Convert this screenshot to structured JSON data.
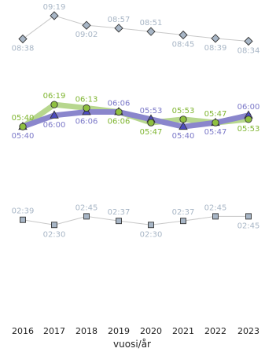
{
  "chart_data": {
    "type": "line",
    "xlabel": "vuosi/år",
    "x": [
      2016,
      2017,
      2018,
      2019,
      2020,
      2021,
      2022,
      2023
    ],
    "series": [
      {
        "values": [
          "08:38",
          "09:19",
          "09:02",
          "08:57",
          "08:51",
          "08:45",
          "08:39",
          "08:34"
        ],
        "minutes": [
          518,
          559,
          542,
          537,
          531,
          525,
          519,
          514
        ],
        "color": "#a8b6c6",
        "line_color": "#c8c8c8",
        "marker": "diamond",
        "marker_fill": "#a8b6c6",
        "label_positions": [
          "below",
          "above",
          "below",
          "above",
          "above",
          "below",
          "below",
          "below"
        ],
        "range_minutes": [
          480,
          570
        ]
      },
      {
        "values": [
          "05:40",
          "06:00",
          "06:06",
          "06:06",
          "05:53",
          "05:40",
          "05:47",
          "06:00"
        ],
        "minutes": [
          340,
          360,
          366,
          366,
          353,
          340,
          347,
          360
        ],
        "color": "#7b78c8",
        "line_color": "#8a86cc",
        "marker": "triangle",
        "marker_fill": "#4d4cbf",
        "label_positions": [
          "below",
          "below",
          "below",
          "above",
          "above",
          "below",
          "below",
          "above"
        ],
        "range_minutes": [
          300,
          400
        ]
      },
      {
        "values": [
          "05:40",
          "06:19",
          "06:13",
          "06:06",
          "05:47",
          "05:53",
          "05:47",
          "05:53"
        ],
        "minutes": [
          340,
          379,
          373,
          366,
          347,
          353,
          347,
          353
        ],
        "color": "#7fb530",
        "line_color": "#b7d78e",
        "marker": "circle",
        "marker_fill": "#8fc040",
        "label_positions": [
          "above",
          "above",
          "above",
          "below",
          "below",
          "above",
          "above",
          "below"
        ],
        "range_minutes": [
          300,
          400
        ]
      },
      {
        "values": [
          "02:39",
          "02:30",
          "02:45",
          "02:37",
          "02:30",
          "02:37",
          "02:45",
          "02:45"
        ],
        "minutes": [
          159,
          150,
          165,
          157,
          150,
          157,
          165,
          165
        ],
        "color": "#a8b6c6",
        "line_color": "#c8c8c8",
        "marker": "square",
        "marker_fill": "#a8b6c6",
        "label_positions": [
          "above",
          "below",
          "above",
          "above",
          "below",
          "above",
          "above",
          "below"
        ],
        "range_minutes": [
          120,
          200
        ]
      }
    ]
  }
}
